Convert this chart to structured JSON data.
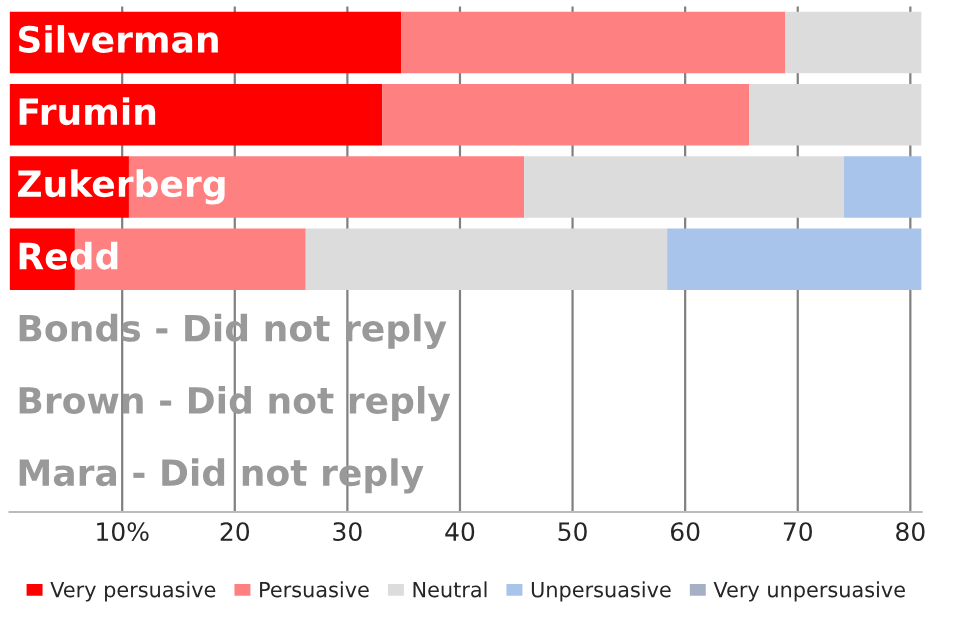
{
  "chart_data": {
    "type": "bar",
    "orientation": "horizontal",
    "stacked": true,
    "categories": [
      "Silverman",
      "Frumin",
      "Zukerberg",
      "Redd",
      "Bonds - Did not reply",
      "Brown - Did not reply",
      "Mara - Did not reply"
    ],
    "series": [
      {
        "name": "Very persuasive",
        "color": "#ff0000",
        "values": [
          34.8,
          33.1,
          10.6,
          5.8,
          null,
          null,
          null
        ]
      },
      {
        "name": "Persuasive",
        "color": "#ff8080",
        "values": [
          34.1,
          32.6,
          35.1,
          20.5,
          null,
          null,
          null
        ]
      },
      {
        "name": "Neutral",
        "color": "#dcdcdc",
        "values": [
          12.1,
          15.3,
          28.4,
          32.1,
          null,
          null,
          null
        ]
      },
      {
        "name": "Unpersuasive",
        "color": "#a9c4eb",
        "values": [
          null,
          null,
          6.9,
          22.6,
          null,
          null,
          null
        ]
      },
      {
        "name": "Very unpersuasive",
        "color": "#a6b0c4",
        "values": [
          null,
          null,
          null,
          null,
          null,
          null,
          null
        ]
      }
    ],
    "xlim": [
      0,
      81
    ],
    "xticks": [
      {
        "value": 10,
        "label": "10%"
      },
      20,
      30,
      40,
      50,
      60,
      70,
      80
    ],
    "grid": "x",
    "tick_labels": "x",
    "legend": "bottom"
  }
}
